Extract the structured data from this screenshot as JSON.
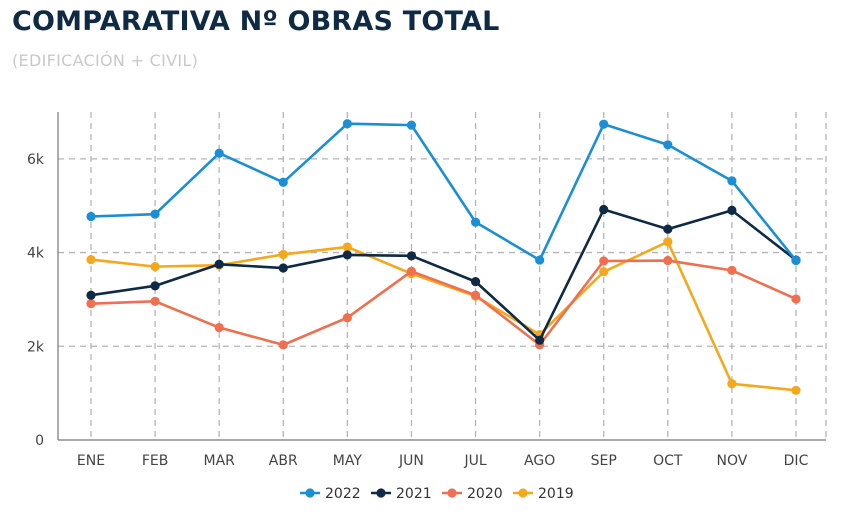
{
  "title": "COMPARATIVA Nº OBRAS TOTAL",
  "subtitle": "(EDIFICACIÓN + CIVIL)",
  "chart_data": {
    "type": "line",
    "categories": [
      "ENE",
      "FEB",
      "MAR",
      "ABR",
      "MAY",
      "JUN",
      "JUL",
      "AGO",
      "SEP",
      "OCT",
      "NOV",
      "DIC"
    ],
    "ylim": [
      0,
      7000
    ],
    "yticks": [
      0,
      2000,
      4000,
      6000
    ],
    "ytick_labels": [
      "0",
      "2k",
      "4k",
      "6k"
    ],
    "grid": true,
    "legend_position": "bottom-center",
    "series": [
      {
        "name": "2022",
        "color": "#1a8fd6",
        "values": [
          4770,
          4820,
          6120,
          5500,
          6750,
          6720,
          4650,
          3840,
          6740,
          6300,
          5530,
          3830
        ]
      },
      {
        "name": "2021",
        "color": "#0f2a44",
        "values": [
          3090,
          3290,
          3750,
          3670,
          3950,
          3930,
          3380,
          2130,
          4920,
          4500,
          4900,
          3840
        ]
      },
      {
        "name": "2020",
        "color": "#ef6f4f",
        "values": [
          2910,
          2960,
          2400,
          2030,
          2610,
          3600,
          3090,
          2030,
          3820,
          3830,
          3620,
          3010
        ]
      },
      {
        "name": "2019",
        "color": "#f6a81c",
        "values": [
          3850,
          3700,
          3730,
          3960,
          4120,
          3550,
          3070,
          2250,
          3590,
          4230,
          1200,
          1060
        ]
      }
    ]
  }
}
